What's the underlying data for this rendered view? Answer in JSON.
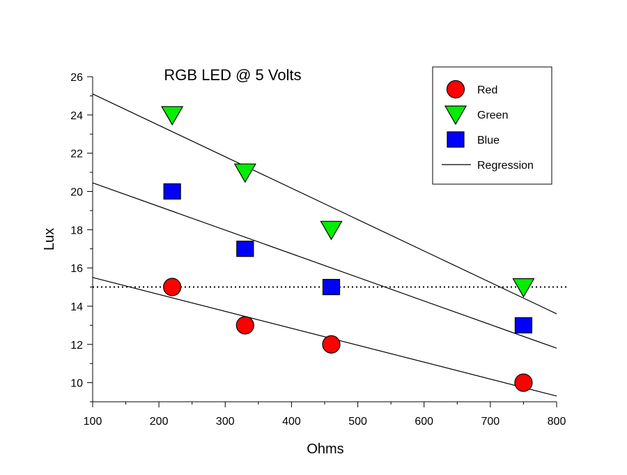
{
  "chart_data": {
    "type": "scatter",
    "title": "RGB LED @ 5 Volts",
    "xlabel": "Ohms",
    "ylabel": "Lux",
    "xlim": [
      100,
      800
    ],
    "ylim": [
      9,
      26
    ],
    "x_ticks": [
      100,
      200,
      300,
      400,
      500,
      600,
      700,
      800
    ],
    "y_ticks": [
      10,
      12,
      14,
      16,
      18,
      20,
      22,
      24,
      26
    ],
    "legend_position": "top-right",
    "series": [
      {
        "name": "Red",
        "marker": "circle",
        "color": "#ff0000",
        "points": [
          [
            220,
            15
          ],
          [
            330,
            13
          ],
          [
            460,
            12
          ],
          [
            750,
            10
          ]
        ]
      },
      {
        "name": "Green",
        "marker": "triangle-down",
        "color": "#00ee00",
        "points": [
          [
            220,
            24
          ],
          [
            330,
            21
          ],
          [
            460,
            18
          ],
          [
            750,
            15
          ]
        ]
      },
      {
        "name": "Blue",
        "marker": "square",
        "color": "#0000ff",
        "points": [
          [
            220,
            20
          ],
          [
            330,
            17
          ],
          [
            460,
            15
          ],
          [
            750,
            13
          ]
        ]
      }
    ],
    "regression": {
      "name": "Regression",
      "lines": [
        {
          "series": "Green",
          "x": [
            100,
            800
          ],
          "y": [
            25.1,
            13.6
          ]
        },
        {
          "series": "Blue",
          "x": [
            100,
            800
          ],
          "y": [
            20.45,
            11.8
          ]
        },
        {
          "series": "Red",
          "x": [
            100,
            800
          ],
          "y": [
            15.5,
            9.3
          ]
        }
      ]
    },
    "reference_line": {
      "y": 15,
      "style": "dotted"
    }
  }
}
